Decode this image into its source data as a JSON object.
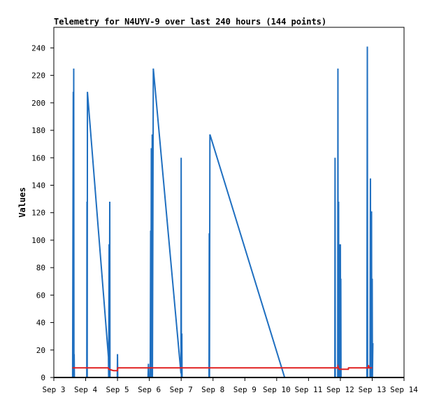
{
  "chart_data": {
    "type": "line",
    "title": "Telemetry for N4UYV-9 over last 240 hours (144 points)",
    "xlabel": "",
    "ylabel": "Values",
    "ylim": [
      0,
      255
    ],
    "xlim": [
      "2023-09-03 00:00",
      "2023-09-14 00:00"
    ],
    "x_ticks": [
      "Sep 3",
      "Sep 4",
      "Sep 5",
      "Sep 6",
      "Sep 7",
      "Sep 8",
      "Sep 9",
      "Sep 10",
      "Sep 11",
      "Sep 12",
      "Sep 13",
      "Sep 14"
    ],
    "y_ticks": [
      0,
      20,
      40,
      60,
      80,
      100,
      120,
      140,
      160,
      180,
      200,
      220,
      240
    ],
    "grid": false,
    "legend": "none",
    "colors": {
      "blue_series": "#1f6fc0",
      "red_series": "#e02020",
      "baseline": "#000000"
    },
    "series": [
      {
        "color": "blue_series",
        "points": [
          [
            "2023-09-03 14:10",
            0
          ],
          [
            "2023-09-03 14:40",
            208
          ],
          [
            "2023-09-03 14:50",
            0
          ],
          [
            "2023-09-03 15:00",
            225
          ],
          [
            "2023-09-03 15:10",
            0
          ],
          [
            "2023-09-03 15:20",
            17
          ],
          [
            "2023-09-03 15:30",
            0
          ],
          [
            "2023-09-04 00:50",
            0
          ],
          [
            "2023-09-04 01:00",
            128
          ],
          [
            "2023-09-04 01:10",
            0
          ],
          [
            "2023-09-04 01:20",
            208
          ],
          [
            "2023-09-04 17:10",
            15
          ],
          [
            "2023-09-04 17:20",
            0
          ],
          [
            "2023-09-04 17:40",
            97
          ],
          [
            "2023-09-04 17:50",
            0
          ],
          [
            "2023-09-04 18:10",
            128
          ],
          [
            "2023-09-04 18:20",
            0
          ],
          [
            "2023-09-04 23:50",
            0
          ],
          [
            "2023-09-05 00:00",
            17
          ],
          [
            "2023-09-05 00:10",
            0
          ],
          [
            "2023-09-05 23:00",
            0
          ],
          [
            "2023-09-05 23:20",
            10
          ],
          [
            "2023-09-05 23:40",
            0
          ],
          [
            "2023-09-06 00:40",
            0
          ],
          [
            "2023-09-06 01:00",
            107
          ],
          [
            "2023-09-06 01:10",
            0
          ],
          [
            "2023-09-06 01:30",
            167
          ],
          [
            "2023-09-06 01:40",
            0
          ],
          [
            "2023-09-06 02:10",
            177
          ],
          [
            "2023-09-06 02:20",
            0
          ],
          [
            "2023-09-06 03:00",
            225
          ],
          [
            "2023-09-06 23:50",
            3
          ],
          [
            "2023-09-07 00:00",
            160
          ],
          [
            "2023-09-07 00:10",
            0
          ],
          [
            "2023-09-07 00:30",
            32
          ],
          [
            "2023-09-07 00:40",
            0
          ],
          [
            "2023-09-07 21:00",
            0
          ],
          [
            "2023-09-07 21:10",
            105
          ],
          [
            "2023-09-07 21:20",
            0
          ],
          [
            "2023-09-07 21:40",
            177
          ],
          [
            "2023-09-10 06:00",
            0
          ],
          [
            "2023-09-11 19:50",
            0
          ],
          [
            "2023-09-11 20:00",
            160
          ],
          [
            "2023-09-11 20:10",
            0
          ],
          [
            "2023-09-11 22:00",
            0
          ],
          [
            "2023-09-11 22:10",
            225
          ],
          [
            "2023-09-11 22:20",
            0
          ],
          [
            "2023-09-11 22:40",
            128
          ],
          [
            "2023-09-11 22:50",
            0
          ],
          [
            "2023-09-11 23:30",
            97
          ],
          [
            "2023-09-11 23:40",
            0
          ],
          [
            "2023-09-12 00:00",
            97
          ],
          [
            "2023-09-12 00:10",
            0
          ],
          [
            "2023-09-12 00:20",
            72
          ],
          [
            "2023-09-12 00:30",
            0
          ],
          [
            "2023-09-12 20:00",
            0
          ],
          [
            "2023-09-12 20:20",
            241
          ],
          [
            "2023-09-12 20:30",
            0
          ],
          [
            "2023-09-12 22:20",
            0
          ],
          [
            "2023-09-12 22:40",
            145
          ],
          [
            "2023-09-12 22:50",
            0
          ],
          [
            "2023-09-12 23:30",
            121
          ],
          [
            "2023-09-12 23:40",
            0
          ],
          [
            "2023-09-13 00:00",
            72
          ],
          [
            "2023-09-13 00:10",
            0
          ],
          [
            "2023-09-13 00:30",
            25
          ]
        ]
      },
      {
        "color": "red_series",
        "points": [
          [
            "2023-09-03 14:00",
            7
          ],
          [
            "2023-09-04 17:00",
            7
          ],
          [
            "2023-09-04 17:30",
            6
          ],
          [
            "2023-09-04 21:00",
            5
          ],
          [
            "2023-09-05 00:00",
            5
          ],
          [
            "2023-09-05 00:10",
            7
          ],
          [
            "2023-09-11 22:00",
            7
          ],
          [
            "2023-09-11 22:10",
            8
          ],
          [
            "2023-09-11 23:00",
            6
          ],
          [
            "2023-09-12 06:00",
            6
          ],
          [
            "2023-09-12 06:10",
            7
          ],
          [
            "2023-09-12 21:00",
            7
          ],
          [
            "2023-09-12 21:10",
            9
          ],
          [
            "2023-09-12 21:30",
            7
          ],
          [
            "2023-09-13 00:00",
            7
          ]
        ]
      }
    ]
  }
}
